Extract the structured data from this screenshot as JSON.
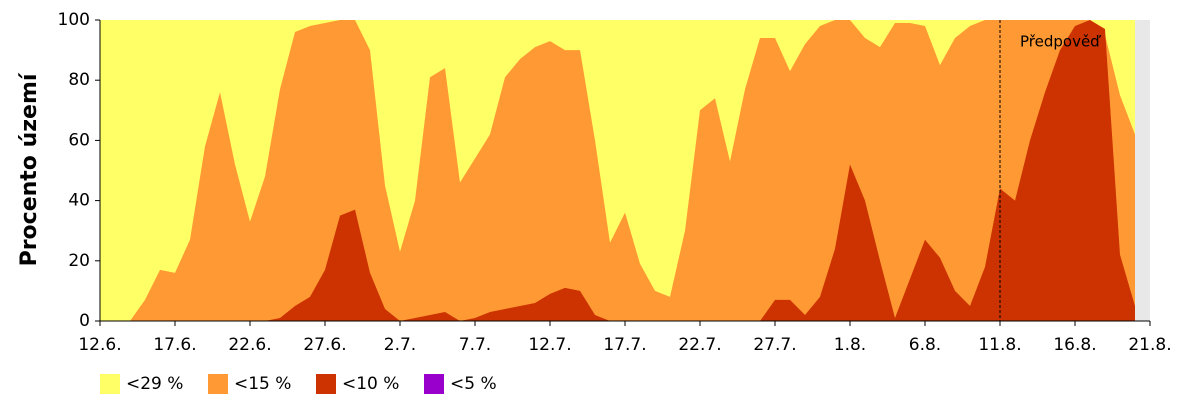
{
  "chart_data": {
    "type": "area",
    "ylabel": "Procento území",
    "categories": [
      "12.6.",
      null,
      null,
      null,
      null,
      "17.6.",
      null,
      null,
      null,
      null,
      "22.6.",
      null,
      null,
      null,
      null,
      "27.6.",
      null,
      null,
      null,
      null,
      "2.7.",
      null,
      null,
      null,
      null,
      "7.7.",
      null,
      null,
      null,
      null,
      "12.7.",
      null,
      null,
      null,
      null,
      "17.7.",
      null,
      null,
      null,
      null,
      "22.7.",
      null,
      null,
      null,
      null,
      "27.7.",
      null,
      null,
      null,
      null,
      "1.8.",
      null,
      null,
      null,
      null,
      "6.8.",
      null,
      null,
      null,
      null,
      "11.8.",
      null,
      null,
      null,
      null,
      "16.8.",
      null,
      null,
      null,
      null,
      "21.8."
    ],
    "series": [
      {
        "name": "<29 %",
        "color": "#ffff66",
        "values": [
          100,
          100,
          100,
          100,
          100,
          100,
          100,
          100,
          100,
          100,
          100,
          100,
          100,
          100,
          100,
          100,
          100,
          100,
          100,
          100,
          100,
          100,
          100,
          100,
          100,
          100,
          100,
          100,
          100,
          100,
          100,
          100,
          100,
          100,
          100,
          100,
          100,
          100,
          100,
          100,
          100,
          100,
          100,
          100,
          100,
          100,
          100,
          100,
          100,
          100,
          100,
          100,
          100,
          100,
          100,
          100,
          100,
          100,
          100,
          100,
          100,
          100,
          100,
          100,
          100,
          100,
          100,
          100,
          100,
          100,
          null
        ]
      },
      {
        "name": "<15 %",
        "color": "#ff9933",
        "values": [
          0,
          0,
          0,
          7,
          17,
          16,
          27,
          58,
          76,
          52,
          33,
          48,
          77,
          96,
          98,
          99,
          100,
          100,
          90,
          45,
          23,
          40,
          81,
          84,
          46,
          54,
          62,
          81,
          87,
          91,
          93,
          90,
          90,
          60,
          26,
          36,
          19,
          10,
          8,
          30,
          70,
          74,
          53,
          77,
          94,
          94,
          83,
          92,
          98,
          100,
          100,
          94,
          91,
          99,
          99,
          98,
          85,
          94,
          98,
          100,
          100,
          100,
          100,
          100,
          100,
          100,
          100,
          95,
          75,
          62,
          null
        ]
      },
      {
        "name": "<10 %",
        "color": "#cc3300",
        "values": [
          0,
          0,
          0,
          0,
          0,
          0,
          0,
          0,
          0,
          0,
          0,
          0,
          1,
          5,
          8,
          17,
          35,
          37,
          16,
          4,
          0,
          1,
          2,
          3,
          0,
          1,
          3,
          4,
          5,
          6,
          9,
          11,
          10,
          2,
          0,
          0,
          0,
          0,
          0,
          0,
          0,
          0,
          0,
          0,
          0,
          7,
          7,
          2,
          8,
          24,
          52,
          40,
          20,
          1,
          14,
          27,
          21,
          10,
          5,
          18,
          44,
          40,
          60,
          76,
          90,
          98,
          100,
          97,
          22,
          5,
          null
        ]
      },
      {
        "name": "<5 %",
        "color": "#9900cc",
        "values": [
          0,
          0,
          0,
          0,
          0,
          0,
          0,
          0,
          0,
          0,
          0,
          0,
          0,
          0,
          0,
          0,
          0,
          0,
          0,
          0,
          0,
          0,
          0,
          0,
          0,
          0,
          0,
          0,
          0,
          0,
          0,
          0,
          0,
          0,
          0,
          0,
          0,
          0,
          0,
          0,
          0,
          0,
          0,
          0,
          0,
          0,
          0,
          0,
          0,
          0,
          0,
          0,
          0,
          0,
          0,
          0,
          0,
          0,
          0,
          0,
          0,
          0,
          0,
          0,
          0,
          0,
          0,
          0,
          0,
          0,
          null
        ]
      }
    ],
    "ylim": [
      0,
      100
    ],
    "yticks": [
      0,
      20,
      40,
      60,
      80,
      100
    ],
    "annotation": {
      "text": "Předpověď",
      "x": "11.8."
    }
  }
}
